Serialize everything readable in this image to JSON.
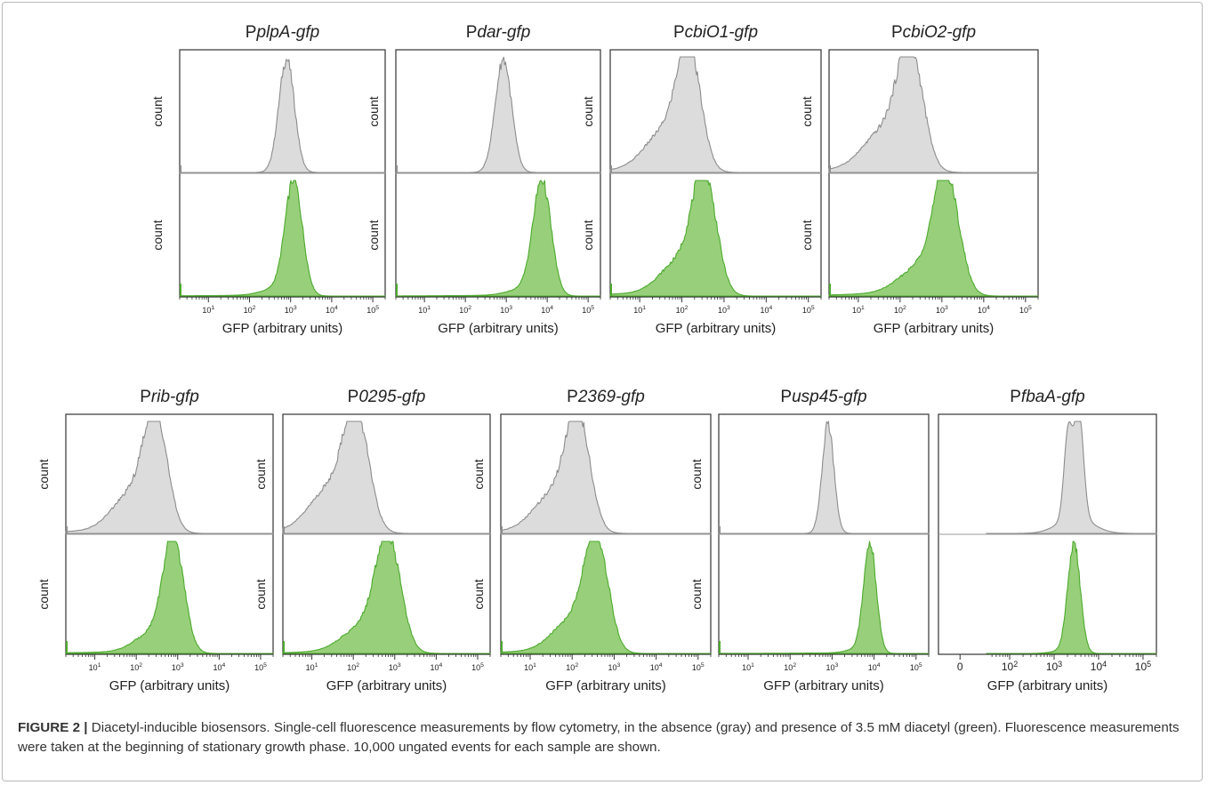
{
  "caption": {
    "label": "FIGURE 2 |",
    "text": " Diacetyl-inducible biosensors. Single-cell fluorescence measurements by flow cytometry, in the absence (gray) and presence of 3.5 mM diacetyl (green). Fluorescence measurements were taken at the beginning of stationary growth phase. 10,000 ungated events for each sample are shown."
  },
  "colors": {
    "uninduced_fill": "#dcdcdc",
    "uninduced_line": "#8c8c8c",
    "induced_fill": "#98cf7a",
    "induced_line": "#4caa2d",
    "axis": "#333333"
  },
  "chart_data": [
    {
      "type": "area",
      "title_prefix": "P",
      "title_italic": "plpA-gfp",
      "xlabel": "GFP (arbitrary units)",
      "ylabel": "count",
      "xscale": "log",
      "xlim": [
        2,
        200000
      ],
      "xticks": [
        "10^1",
        "10^2",
        "10^3",
        "10^4",
        "10^5"
      ],
      "series": [
        {
          "name": "absence of diacetyl (gray)",
          "peak_x": 800,
          "width": 0.19,
          "shoulder": 0.0,
          "tail": 0.0
        },
        {
          "name": "presence of 3.5 mM diacetyl (green)",
          "peak_x": 1200,
          "width": 0.21,
          "shoulder": 0.05,
          "tail": 0.02
        }
      ]
    },
    {
      "type": "area",
      "title_prefix": "P",
      "title_italic": "dar-gfp",
      "xlabel": "GFP (arbitrary units)",
      "ylabel": "count",
      "xscale": "log",
      "xlim": [
        2,
        200000
      ],
      "xticks": [
        "10^1",
        "10^2",
        "10^3",
        "10^4",
        "10^5"
      ],
      "series": [
        {
          "name": "absence of diacetyl (gray)",
          "peak_x": 850,
          "width": 0.2,
          "shoulder": 0.0,
          "tail": 0.0
        },
        {
          "name": "presence of 3.5 mM diacetyl (green)",
          "peak_x": 7500,
          "width": 0.22,
          "shoulder": 0.05,
          "tail": 0.02
        }
      ]
    },
    {
      "type": "area",
      "title_prefix": "P",
      "title_italic": "cbiO1-gfp",
      "xlabel": "GFP (arbitrary units)",
      "ylabel": "count",
      "xscale": "log",
      "xlim": [
        2,
        200000
      ],
      "xticks": [
        "10^1",
        "10^2",
        "10^3",
        "10^4",
        "10^5"
      ],
      "series": [
        {
          "name": "absence of diacetyl (gray)",
          "peak_x": 150,
          "width": 0.28,
          "shoulder": 0.3,
          "tail": 0.1
        },
        {
          "name": "presence of 3.5 mM diacetyl (green)",
          "peak_x": 350,
          "width": 0.28,
          "shoulder": 0.25,
          "tail": 0.1
        }
      ]
    },
    {
      "type": "area",
      "title_prefix": "P",
      "title_italic": "cbiO2-gfp",
      "xlabel": "GFP (arbitrary units)",
      "ylabel": "count",
      "xscale": "log",
      "xlim": [
        2,
        200000
      ],
      "xticks": [
        "10^1",
        "10^2",
        "10^3",
        "10^4",
        "10^5"
      ],
      "series": [
        {
          "name": "absence of diacetyl (gray)",
          "peak_x": 180,
          "width": 0.3,
          "shoulder": 0.3,
          "tail": 0.12
        },
        {
          "name": "presence of 3.5 mM diacetyl (green)",
          "peak_x": 1300,
          "width": 0.3,
          "shoulder": 0.2,
          "tail": 0.1
        }
      ]
    },
    {
      "type": "area",
      "title_prefix": "P",
      "title_italic": "rib-gfp",
      "xlabel": "GFP (arbitrary units)",
      "ylabel": "count",
      "xscale": "log",
      "xlim": [
        2,
        200000
      ],
      "xticks": [
        "10^1",
        "10^2",
        "10^3",
        "10^4",
        "10^5"
      ],
      "series": [
        {
          "name": "absence of diacetyl (gray)",
          "peak_x": 300,
          "width": 0.28,
          "shoulder": 0.3,
          "tail": 0.1
        },
        {
          "name": "presence of 3.5 mM diacetyl (green)",
          "peak_x": 800,
          "width": 0.25,
          "shoulder": 0.15,
          "tail": 0.05
        }
      ]
    },
    {
      "type": "area",
      "title_prefix": "P",
      "title_italic": "0295-gfp",
      "xlabel": "GFP (arbitrary units)",
      "ylabel": "count",
      "xscale": "log",
      "xlim": [
        2,
        200000
      ],
      "xticks": [
        "10^1",
        "10^2",
        "10^3",
        "10^4",
        "10^5"
      ],
      "series": [
        {
          "name": "absence of diacetyl (gray)",
          "peak_x": 120,
          "width": 0.3,
          "shoulder": 0.35,
          "tail": 0.1
        },
        {
          "name": "presence of 3.5 mM diacetyl (green)",
          "peak_x": 700,
          "width": 0.3,
          "shoulder": 0.2,
          "tail": 0.06
        }
      ]
    },
    {
      "type": "area",
      "title_prefix": "P",
      "title_italic": "2369-gfp",
      "xlabel": "GFP (arbitrary units)",
      "ylabel": "count",
      "xscale": "log",
      "xlim": [
        2,
        200000
      ],
      "xticks": [
        "10^1",
        "10^2",
        "10^3",
        "10^4",
        "10^5"
      ],
      "series": [
        {
          "name": "absence of diacetyl (gray)",
          "peak_x": 140,
          "width": 0.28,
          "shoulder": 0.3,
          "tail": 0.1
        },
        {
          "name": "presence of 3.5 mM diacetyl (green)",
          "peak_x": 380,
          "width": 0.28,
          "shoulder": 0.25,
          "tail": 0.08
        }
      ]
    },
    {
      "type": "area",
      "title_prefix": "P",
      "title_italic": "usp45-gfp",
      "xlabel": "GFP (arbitrary units)",
      "ylabel": "count",
      "xscale": "log",
      "xlim": [
        2,
        200000
      ],
      "xticks": [
        "10^1",
        "10^2",
        "10^3",
        "10^4",
        "10^5"
      ],
      "series": [
        {
          "name": "absence of diacetyl (gray)",
          "peak_x": 800,
          "width": 0.14,
          "shoulder": 0.0,
          "tail": 0.0
        },
        {
          "name": "presence of 3.5 mM diacetyl (green)",
          "peak_x": 8000,
          "width": 0.15,
          "shoulder": 0.03,
          "tail": 0.01
        }
      ]
    },
    {
      "type": "area",
      "title_prefix": "P",
      "title_italic": "fbaA-gfp",
      "xlabel": "GFP (arbitrary units)",
      "ylabel": "",
      "xscale": "biexponential",
      "xlim": [
        -100,
        200000
      ],
      "xticks": [
        "0",
        "10^2",
        "10^3",
        "10^4",
        "10^5"
      ],
      "series": [
        {
          "name": "absence of diacetyl (gray)",
          "peak_x": 3000,
          "width": 0.17,
          "shoulder": 0.1,
          "tail": 0.02,
          "double_peak": true
        },
        {
          "name": "presence of 3.5 mM diacetyl (green)",
          "peak_x": 2800,
          "width": 0.14,
          "shoulder": 0.02,
          "tail": 0.0
        }
      ]
    }
  ]
}
